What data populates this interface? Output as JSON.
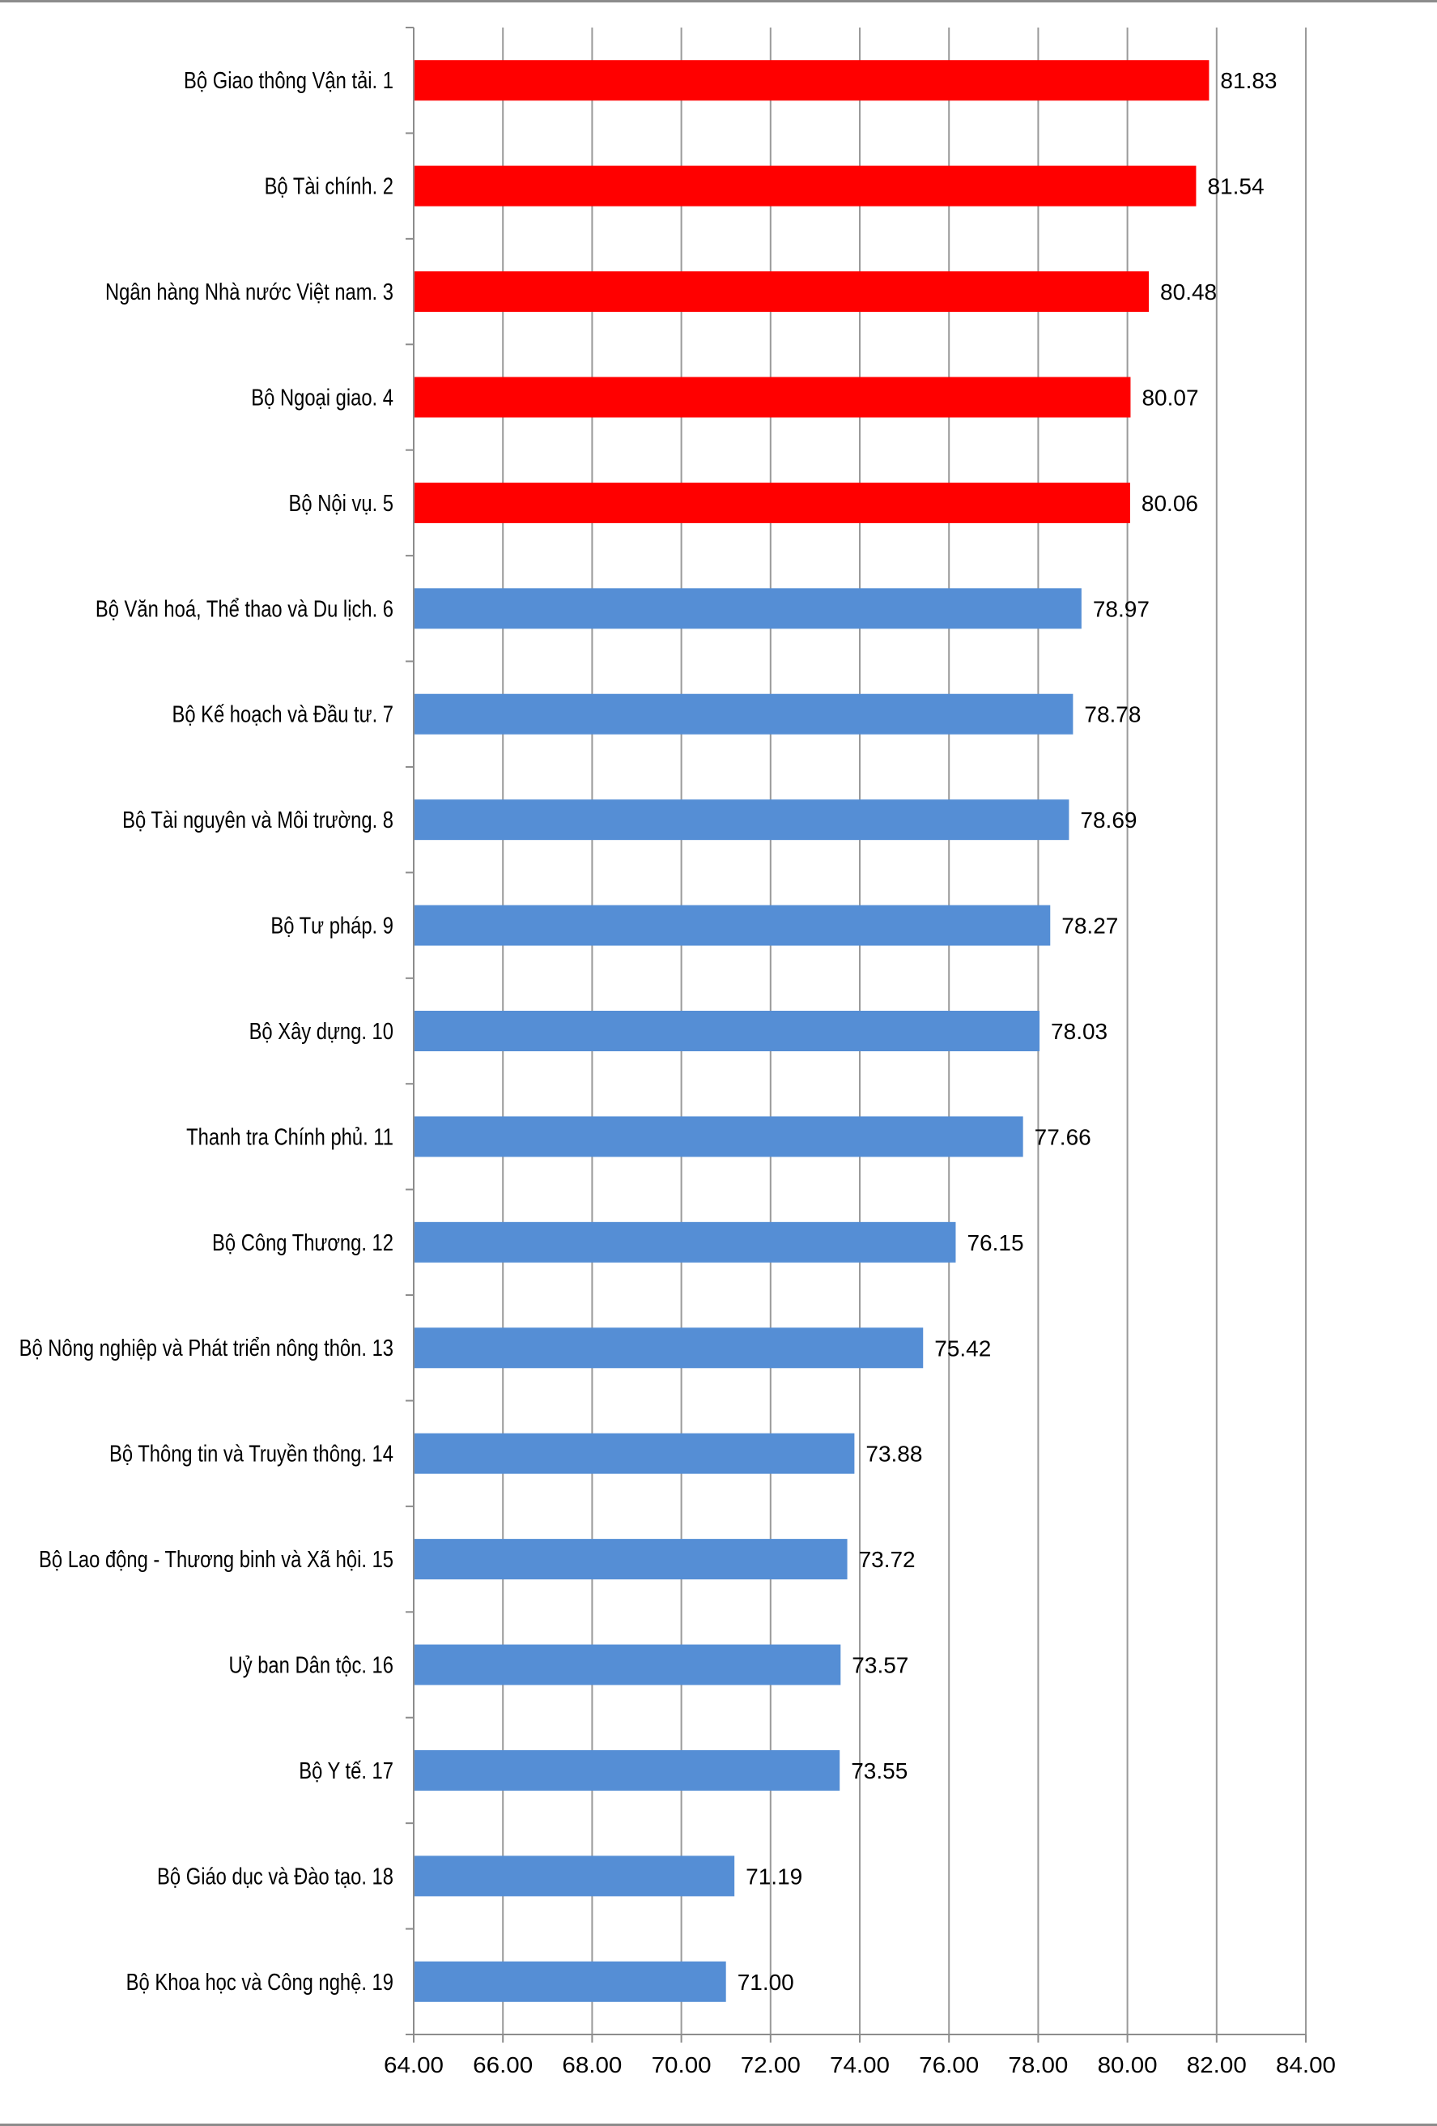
{
  "chart_data": {
    "type": "bar",
    "orientation": "horizontal",
    "title": "",
    "xlabel": "",
    "ylabel": "",
    "xlim": [
      64,
      84
    ],
    "x_ticks": [
      "64.00",
      "66.00",
      "68.00",
      "70.00",
      "72.00",
      "74.00",
      "76.00",
      "78.00",
      "80.00",
      "82.00",
      "84.00"
    ],
    "grid": "vertical",
    "legend": "none",
    "colors": {
      "top5": "#ff0000",
      "others": "#558ed5"
    },
    "categories": [
      "Bộ Giao thông Vận tải. 1",
      "Bộ Tài chính. 2",
      "Ngân hàng Nhà nước Việt nam. 3",
      "Bộ Ngoại giao. 4",
      "Bộ Nội vụ. 5",
      "Bộ Văn hoá, Thể thao và Du lịch. 6",
      "Bộ Kế hoạch và Đầu tư. 7",
      "Bộ Tài nguyên và Môi trường. 8",
      "Bộ Tư pháp. 9",
      "Bộ Xây dựng. 10",
      "Thanh tra Chính phủ. 11",
      "Bộ Công Thương. 12",
      "Bộ Nông nghiệp và Phát triển nông thôn. 13",
      "Bộ Thông tin và Truyền thông. 14",
      "Bộ Lao động - Thương binh và Xã hội. 15",
      "Uỷ ban Dân tộc. 16",
      "Bộ Y tế. 17",
      "Bộ Giáo dục và Đào tạo. 18",
      "Bộ Khoa học và Công nghệ. 19"
    ],
    "values": [
      81.83,
      81.54,
      80.48,
      80.07,
      80.06,
      78.97,
      78.78,
      78.69,
      78.27,
      78.03,
      77.66,
      76.15,
      75.42,
      73.88,
      73.72,
      73.57,
      73.55,
      71.19,
      71.0
    ],
    "value_labels": [
      "81.83",
      "81.54",
      "80.48",
      "80.07",
      "80.06",
      "78.97",
      "78.78",
      "78.69",
      "78.27",
      "78.03",
      "77.66",
      "76.15",
      "75.42",
      "73.88",
      "73.72",
      "73.57",
      "73.55",
      "71.19",
      "71.00"
    ],
    "highlighted_count": 5
  }
}
